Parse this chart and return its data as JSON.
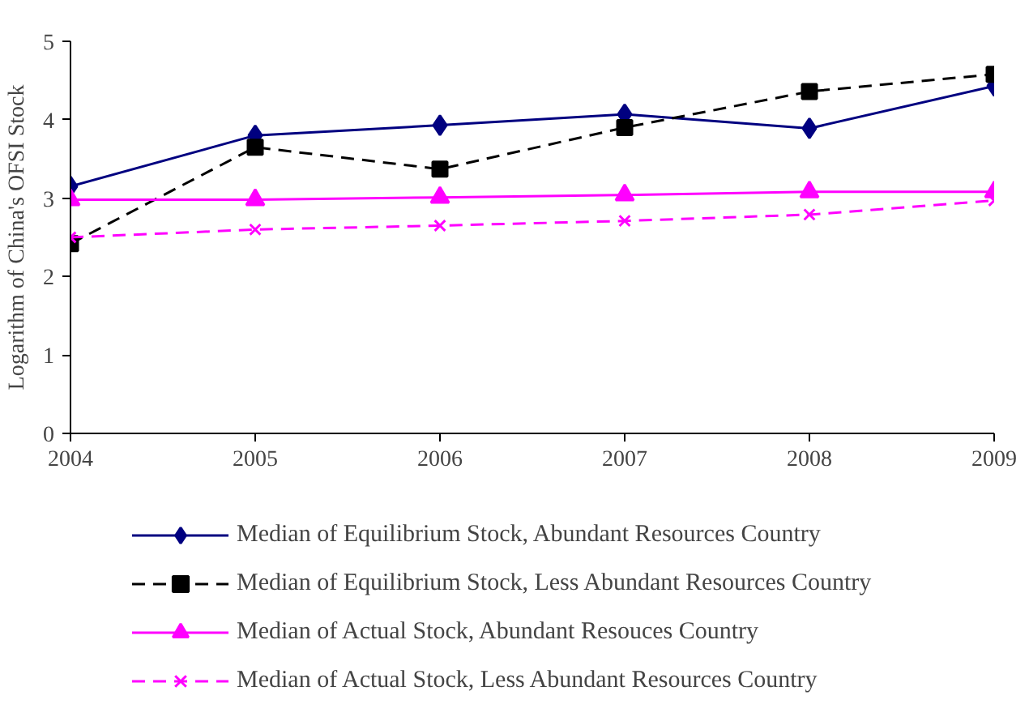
{
  "chart_data": {
    "type": "line",
    "ylabel": "Logarithm of China's OFSI Stock",
    "x": [
      2004,
      2005,
      2006,
      2007,
      2008,
      2009
    ],
    "xlim": [
      2004,
      2009
    ],
    "xticks": [
      2004,
      2005,
      2006,
      2007,
      2008,
      2009
    ],
    "ylim": [
      0,
      5
    ],
    "yticks": [
      0,
      1,
      2,
      3,
      4,
      5
    ],
    "grid": false,
    "legend": "bottom",
    "series": [
      {
        "name": "Median of Equilibrium Stock, Abundant Resources Country",
        "color": "#000080",
        "marker": "diamond",
        "line_style": "solid",
        "values": [
          3.15,
          3.8,
          3.93,
          4.07,
          3.89,
          4.43
        ]
      },
      {
        "name": "Median of Equilibrium Stock, Less Abundant Resources Country",
        "color": "#000000",
        "marker": "square",
        "line_style": "dashed",
        "values": [
          2.42,
          3.65,
          3.37,
          3.9,
          4.36,
          4.58
        ]
      },
      {
        "name": "Median of Actual Stock, Abundant Resouces Country",
        "color": "#ff00ff",
        "marker": "triangle",
        "line_style": "solid",
        "values": [
          2.98,
          2.98,
          3.01,
          3.04,
          3.08,
          3.08
        ]
      },
      {
        "name": "Median of Actual Stock, Less Abundant Resources Country",
        "color": "#ff00ff",
        "marker": "cross",
        "line_style": "dashed",
        "values": [
          2.5,
          2.6,
          2.65,
          2.71,
          2.79,
          2.97
        ]
      }
    ]
  }
}
